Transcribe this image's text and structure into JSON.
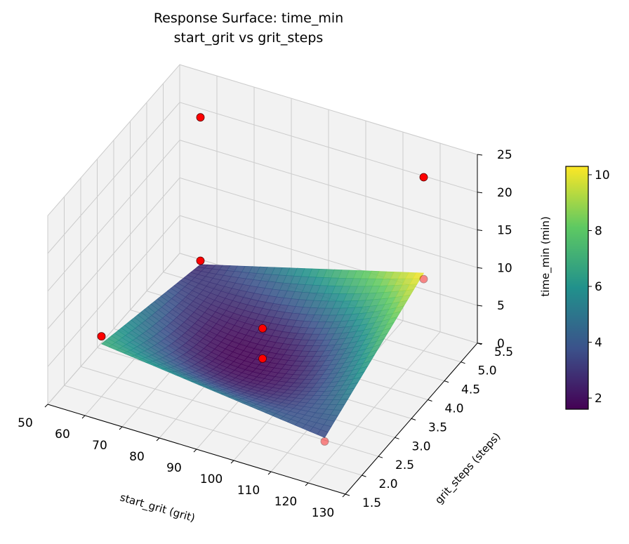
{
  "chart_data": {
    "type": "surface3d",
    "title": "Response Surface: time_min",
    "subtitle": "start_grit vs grit_steps",
    "xlabel": "start_grit (grit)",
    "ylabel": "grit_steps (steps)",
    "zlabel": "time_min (min)",
    "xlim": [
      50,
      130
    ],
    "ylim": [
      1.5,
      5.5
    ],
    "zlim": [
      0,
      25
    ],
    "x_ticks": [
      50,
      60,
      70,
      80,
      90,
      100,
      110,
      120,
      130
    ],
    "y_ticks": [
      "1.5",
      "2.0",
      "2.5",
      "3.0",
      "3.5",
      "4.0",
      "4.5",
      "5.0",
      "5.5"
    ],
    "z_ticks": [
      0,
      5,
      10,
      15,
      20,
      25
    ],
    "grid": true,
    "colormap": [
      "#440154",
      "#3b528b",
      "#21918c",
      "#5ec962",
      "#fde725"
    ],
    "colorbar": {
      "min": 1.6,
      "max": 10.3,
      "ticks": [
        2,
        4,
        6,
        8,
        10
      ],
      "placement": "right"
    },
    "surface": {
      "x_range": [
        60,
        120
      ],
      "y_range": [
        2,
        5
      ],
      "corner_values": {
        "x60_y2": 7.0,
        "x120_y2": 3.5,
        "x60_y5": 2.5,
        "x120_y5": 10.3
      },
      "min_value": 1.7
    },
    "points": [
      {
        "x": 60,
        "y": 2,
        "z": 8
      },
      {
        "x": 60,
        "y": 5,
        "z": 3
      },
      {
        "x": 60,
        "y": 5,
        "z": 22
      },
      {
        "x": 90,
        "y": 3.5,
        "z": 2
      },
      {
        "x": 120,
        "y": 2,
        "z": 3
      },
      {
        "x": 120,
        "y": 5,
        "z": 9.5
      },
      {
        "x": 120,
        "y": 5,
        "z": 23
      },
      {
        "x": 90,
        "y": 3.5,
        "z": 6
      }
    ],
    "point_color": "#ff0000"
  }
}
